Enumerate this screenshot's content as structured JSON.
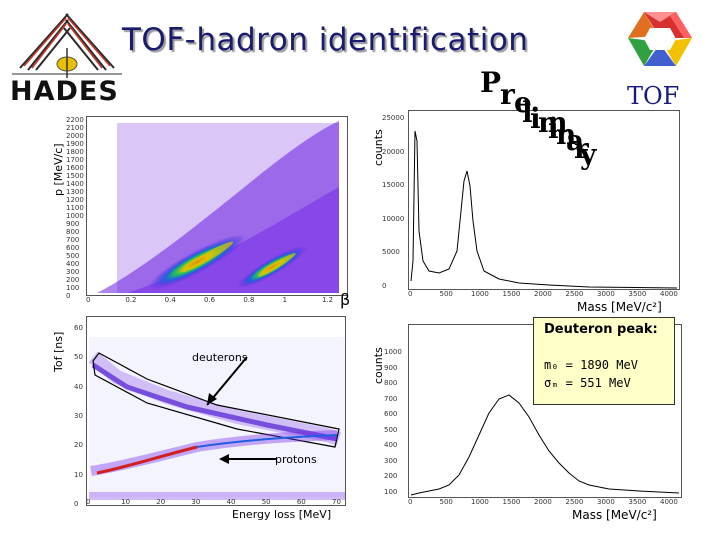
{
  "header": {
    "title": "TOF-hadron identification",
    "logo_left_text": "HADES",
    "logo_right_text": "TOF",
    "watermark": "Preliminary"
  },
  "panels": {
    "top_left": {
      "ylabel": "p [MeV/c]",
      "xlabel": "β",
      "yticks": [
        "2200",
        "2100",
        "2000",
        "1900",
        "1800",
        "1700",
        "1600",
        "1500",
        "1400",
        "1300",
        "1200",
        "1100",
        "1000",
        "900",
        "800",
        "700",
        "600",
        "500",
        "400",
        "300",
        "200",
        "100",
        "0"
      ],
      "xticks": [
        "0",
        "0.2",
        "0.4",
        "0.6",
        "0.8",
        "1",
        "1.2"
      ]
    },
    "top_right": {
      "ylabel": "counts",
      "xlabel": "Mass [MeV/c²]",
      "yticks": [
        "25000",
        "20000",
        "15000",
        "10000",
        "5000",
        "0"
      ],
      "xticks": [
        "0",
        "500",
        "1000",
        "1500",
        "2000",
        "2500",
        "3000",
        "3500",
        "4000"
      ]
    },
    "bottom_left": {
      "ylabel": "Tof [ns]",
      "xlabel": "Energy loss [MeV]",
      "yticks": [
        "60",
        "50",
        "40",
        "30",
        "20",
        "10",
        "0"
      ],
      "xticks": [
        "0",
        "10",
        "20",
        "30",
        "40",
        "50",
        "60",
        "70"
      ],
      "label_deuterons": "deuterons",
      "label_protons": "protons"
    },
    "bottom_right": {
      "ylabel": "counts",
      "xlabel": "Mass [MeV/c²]",
      "yticks": [
        "1000",
        "900",
        "800",
        "700",
        "600",
        "500",
        "400",
        "300",
        "200",
        "100"
      ],
      "xticks": [
        "0",
        "500",
        "1000",
        "1500",
        "2000",
        "2500",
        "3000",
        "3500",
        "4000"
      ],
      "info_title": "Deuteron peak:",
      "info_line1": "m₀ = 1890 MeV",
      "info_line2": "σₘ =  551 MeV"
    }
  },
  "colors": {
    "title": "#1a1a6e",
    "hist_line": "#000000",
    "info_bg": "#ffffc8",
    "cmap_low": "#6a1de0",
    "cmap_high": "#d02020"
  }
}
